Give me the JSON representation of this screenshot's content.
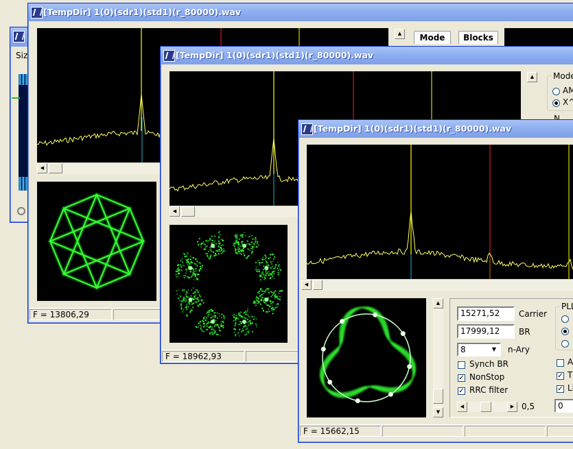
{
  "windows": {
    "back": {
      "label": "Siz"
    },
    "w1": {
      "title": "[TempDir] 1(0)(sdr1)(std1)(r_80000).wav",
      "status_freq": "F = 13806,29",
      "tabs": [
        "Mode",
        "Blocks"
      ]
    },
    "w2": {
      "title": "[TempDir] 1(0)(sdr1)(std1)(r_80000).wav",
      "status_freq": "F = 18962,93",
      "group_title": "Mode",
      "radio1": "AM",
      "radio2": "X^",
      "side_label": "N"
    },
    "w3": {
      "title": "[TempDir] 1(0)(sdr1)(std1)(r_80000).wav",
      "status_freq": "F = 15662,15",
      "carrier_value": "15271,52",
      "carrier_label": "Carrier",
      "br_value": "17999,12",
      "br_label": "BR",
      "nary_value": "8",
      "nary_label": "n-Ary",
      "synch_br_label": "Synch BR",
      "nonstop_label": "NonStop",
      "rrc_label": "RRC filter",
      "rolloff_value": "0,5",
      "pll_title": "PLL",
      "right_chk1": "A",
      "right_chk2": "T",
      "right_chk3": "Li",
      "right_field": "0"
    }
  },
  "colors": {
    "title_blue": "#0831d9",
    "spectrum_trace": "#ffff66",
    "constellation": "#33ff33",
    "marker_red": "#ff2020",
    "marker_yellow": "#ffff00",
    "marker_cyan": "#20b0d0"
  }
}
